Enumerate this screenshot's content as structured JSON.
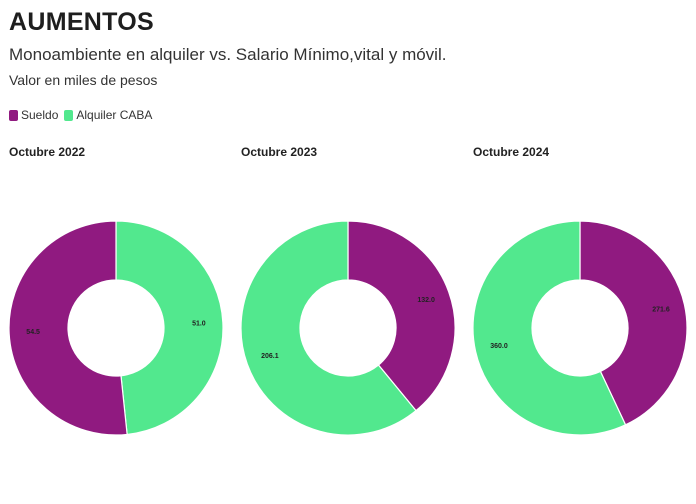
{
  "title": "AUMENTOS",
  "subtitle": "Monoambiente en alquiler vs. Salario Mínimo,vital y móvil.",
  "note": "Valor en miles de pesos",
  "legend": [
    {
      "label": "Sueldo",
      "color": "#901a80"
    },
    {
      "label": "Alquiler CABA",
      "color": "#52e88e"
    }
  ],
  "chart_data": [
    {
      "type": "pie",
      "title": "Octubre 2022",
      "labels": [
        "Sueldo",
        "Alquiler CABA"
      ],
      "values": [
        54.5,
        51.0
      ],
      "value_labels": [
        "54.5",
        "51.0"
      ],
      "colors": [
        "#901a80",
        "#52e88e"
      ],
      "start": "Alquiler CABA clockwise from top"
    },
    {
      "type": "pie",
      "title": "Octubre 2023",
      "labels": [
        "Sueldo",
        "Alquiler CABA"
      ],
      "values": [
        132.0,
        206.1
      ],
      "value_labels": [
        "132.0",
        "206.1"
      ],
      "colors": [
        "#901a80",
        "#52e88e"
      ],
      "start": "Sueldo clockwise from top"
    },
    {
      "type": "pie",
      "title": "Octubre 2024",
      "labels": [
        "Sueldo",
        "Alquiler CABA"
      ],
      "values": [
        271.6,
        360.0
      ],
      "value_labels": [
        "271.6",
        "360.0"
      ],
      "colors": [
        "#901a80",
        "#52e88e"
      ],
      "start": "Sueldo clockwise from top"
    }
  ]
}
